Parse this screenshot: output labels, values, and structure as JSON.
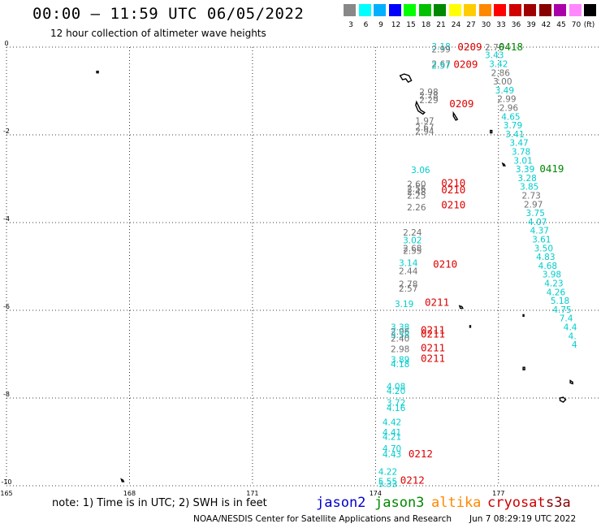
{
  "header": {
    "title": "00:00 – 11:59 UTC 06/05/2022",
    "subtitle": "12 hour collection of altimeter wave heights"
  },
  "legend": {
    "unit": "(ft)",
    "bins": [
      {
        "label": "3",
        "color": "#888888"
      },
      {
        "label": "6",
        "color": "#00ffff"
      },
      {
        "label": "9",
        "color": "#00b0ff"
      },
      {
        "label": "12",
        "color": "#0000ff"
      },
      {
        "label": "15",
        "color": "#00ff00"
      },
      {
        "label": "18",
        "color": "#00c000"
      },
      {
        "label": "21",
        "color": "#008800"
      },
      {
        "label": "24",
        "color": "#ffff00"
      },
      {
        "label": "27",
        "color": "#ffcc00"
      },
      {
        "label": "30",
        "color": "#ff8800"
      },
      {
        "label": "33",
        "color": "#ff0000"
      },
      {
        "label": "36",
        "color": "#d00000"
      },
      {
        "label": "39",
        "color": "#a00000"
      },
      {
        "label": "42",
        "color": "#880000"
      },
      {
        "label": "45",
        "color": "#aa00aa"
      },
      {
        "label": "70",
        "color": "#ff88ff"
      },
      {
        "label": "",
        "color": "#000000"
      }
    ]
  },
  "axes": {
    "lon_ticks": [
      "165",
      "168",
      "171",
      "174",
      "177"
    ],
    "lat_ticks": [
      "0",
      "-2",
      "-4",
      "-6",
      "-8",
      "-10"
    ],
    "lon_range": [
      165,
      179.5
    ],
    "lat_range": [
      0,
      -10
    ]
  },
  "colors": {
    "cyan": "#00cccc",
    "gray": "#707070",
    "time_red": "#dd0000",
    "time_green": "#008800"
  },
  "readings": [
    {
      "lon": 175.6,
      "lat": 0.02,
      "text": "3.18",
      "c": "cyan"
    },
    {
      "lon": 175.6,
      "lat": -0.05,
      "text": "2.99",
      "c": "gray"
    },
    {
      "lon": 176.9,
      "lat": 0.0,
      "text": "2.76",
      "c": "gray"
    },
    {
      "lon": 175.6,
      "lat": -0.38,
      "text": "2.67",
      "c": "gray"
    },
    {
      "lon": 175.6,
      "lat": -0.42,
      "text": "2.57",
      "c": "cyan"
    },
    {
      "lon": 176.9,
      "lat": -0.18,
      "text": "3.43",
      "c": "cyan"
    },
    {
      "lon": 177.0,
      "lat": -0.38,
      "text": "3.42",
      "c": "cyan"
    },
    {
      "lon": 177.05,
      "lat": -0.58,
      "text": "2.86",
      "c": "gray"
    },
    {
      "lon": 177.1,
      "lat": -0.78,
      "text": "3.00",
      "c": "gray"
    },
    {
      "lon": 177.15,
      "lat": -0.98,
      "text": "3.49",
      "c": "cyan"
    },
    {
      "lon": 177.2,
      "lat": -1.18,
      "text": "2.99",
      "c": "gray"
    },
    {
      "lon": 177.25,
      "lat": -1.38,
      "text": "2.96",
      "c": "gray"
    },
    {
      "lon": 177.3,
      "lat": -1.58,
      "text": "4.65",
      "c": "cyan"
    },
    {
      "lon": 177.35,
      "lat": -1.78,
      "text": "3.79",
      "c": "cyan"
    },
    {
      "lon": 177.4,
      "lat": -1.98,
      "text": "3.41",
      "c": "cyan"
    },
    {
      "lon": 177.5,
      "lat": -2.18,
      "text": "3.47",
      "c": "cyan"
    },
    {
      "lon": 177.55,
      "lat": -2.38,
      "text": "3.78",
      "c": "cyan"
    },
    {
      "lon": 177.6,
      "lat": -2.58,
      "text": "3.01",
      "c": "cyan"
    },
    {
      "lon": 177.65,
      "lat": -2.78,
      "text": "3.39",
      "c": "cyan"
    },
    {
      "lon": 177.7,
      "lat": -2.98,
      "text": "3.28",
      "c": "cyan"
    },
    {
      "lon": 177.75,
      "lat": -3.18,
      "text": "3.85",
      "c": "cyan"
    },
    {
      "lon": 177.8,
      "lat": -3.38,
      "text": "2.73",
      "c": "gray"
    },
    {
      "lon": 177.85,
      "lat": -3.58,
      "text": "2.97",
      "c": "gray"
    },
    {
      "lon": 177.9,
      "lat": -3.78,
      "text": "3.75",
      "c": "cyan"
    },
    {
      "lon": 177.95,
      "lat": -3.98,
      "text": "4.07",
      "c": "cyan"
    },
    {
      "lon": 178.0,
      "lat": -4.18,
      "text": "4.37",
      "c": "cyan"
    },
    {
      "lon": 178.05,
      "lat": -4.38,
      "text": "3.61",
      "c": "cyan"
    },
    {
      "lon": 178.1,
      "lat": -4.58,
      "text": "3.50",
      "c": "cyan"
    },
    {
      "lon": 178.15,
      "lat": -4.78,
      "text": "4.83",
      "c": "cyan"
    },
    {
      "lon": 178.2,
      "lat": -4.98,
      "text": "4.68",
      "c": "cyan"
    },
    {
      "lon": 178.3,
      "lat": -5.18,
      "text": "3.98",
      "c": "cyan"
    },
    {
      "lon": 178.35,
      "lat": -5.38,
      "text": "4.23",
      "c": "cyan"
    },
    {
      "lon": 178.4,
      "lat": -5.58,
      "text": "4.26",
      "c": "cyan"
    },
    {
      "lon": 178.5,
      "lat": -5.78,
      "text": "5.18",
      "c": "cyan"
    },
    {
      "lon": 178.55,
      "lat": -5.98,
      "text": "4.75",
      "c": "cyan"
    },
    {
      "lon": 178.65,
      "lat": -6.18,
      "text": "7.4",
      "c": "cyan"
    },
    {
      "lon": 178.75,
      "lat": -6.38,
      "text": "4.4",
      "c": "cyan"
    },
    {
      "lon": 178.8,
      "lat": -6.58,
      "text": "4.",
      "c": "cyan"
    },
    {
      "lon": 178.85,
      "lat": -6.78,
      "text": "4",
      "c": "cyan"
    },
    {
      "lon": 175.3,
      "lat": -1.02,
      "text": "2.98",
      "c": "gray"
    },
    {
      "lon": 175.3,
      "lat": -1.1,
      "text": "2.78",
      "c": "gray"
    },
    {
      "lon": 175.3,
      "lat": -1.2,
      "text": "2.29",
      "c": "gray"
    },
    {
      "lon": 175.2,
      "lat": -1.68,
      "text": "1.97",
      "c": "gray"
    },
    {
      "lon": 175.2,
      "lat": -1.82,
      "text": "2.67",
      "c": "gray"
    },
    {
      "lon": 175.2,
      "lat": -1.92,
      "text": "2.94",
      "c": "gray"
    },
    {
      "lon": 175.1,
      "lat": -2.8,
      "text": "3.06",
      "c": "cyan"
    },
    {
      "lon": 175.0,
      "lat": -3.12,
      "text": "2.60",
      "c": "gray"
    },
    {
      "lon": 175.0,
      "lat": -3.22,
      "text": "2.56",
      "c": "gray"
    },
    {
      "lon": 175.0,
      "lat": -3.3,
      "text": "2.48",
      "c": "gray"
    },
    {
      "lon": 175.0,
      "lat": -3.38,
      "text": "2.25",
      "c": "gray"
    },
    {
      "lon": 175.0,
      "lat": -3.65,
      "text": "2.26",
      "c": "gray"
    },
    {
      "lon": 174.9,
      "lat": -4.22,
      "text": "2.24",
      "c": "gray"
    },
    {
      "lon": 174.9,
      "lat": -4.4,
      "text": "3.02",
      "c": "cyan"
    },
    {
      "lon": 174.9,
      "lat": -4.58,
      "text": "2.68",
      "c": "gray"
    },
    {
      "lon": 174.9,
      "lat": -4.64,
      "text": "2.55",
      "c": "gray"
    },
    {
      "lon": 174.8,
      "lat": -4.92,
      "text": "3.14",
      "c": "cyan"
    },
    {
      "lon": 174.8,
      "lat": -5.1,
      "text": "2.44",
      "c": "gray"
    },
    {
      "lon": 174.8,
      "lat": -5.4,
      "text": "2.78",
      "c": "gray"
    },
    {
      "lon": 174.8,
      "lat": -5.5,
      "text": "2.57",
      "c": "gray"
    },
    {
      "lon": 174.7,
      "lat": -5.85,
      "text": "3.19",
      "c": "cyan"
    },
    {
      "lon": 174.6,
      "lat": -6.38,
      "text": "3.38",
      "c": "cyan"
    },
    {
      "lon": 174.6,
      "lat": -6.48,
      "text": "2.96",
      "c": "gray"
    },
    {
      "lon": 174.6,
      "lat": -6.56,
      "text": "3.58",
      "c": "cyan"
    },
    {
      "lon": 174.6,
      "lat": -6.64,
      "text": "2.40",
      "c": "gray"
    },
    {
      "lon": 174.6,
      "lat": -6.88,
      "text": "2.98",
      "c": "gray"
    },
    {
      "lon": 174.6,
      "lat": -7.12,
      "text": "3.89",
      "c": "cyan"
    },
    {
      "lon": 174.6,
      "lat": -7.22,
      "text": "4.18",
      "c": "cyan"
    },
    {
      "lon": 174.5,
      "lat": -7.73,
      "text": "4.08",
      "c": "cyan"
    },
    {
      "lon": 174.5,
      "lat": -7.83,
      "text": "4.20",
      "c": "cyan"
    },
    {
      "lon": 174.5,
      "lat": -8.1,
      "text": "3.72",
      "c": "cyan"
    },
    {
      "lon": 174.5,
      "lat": -8.22,
      "text": "4.16",
      "c": "cyan"
    },
    {
      "lon": 174.4,
      "lat": -8.55,
      "text": "4.42",
      "c": "cyan"
    },
    {
      "lon": 174.4,
      "lat": -8.78,
      "text": "4.41",
      "c": "cyan"
    },
    {
      "lon": 174.4,
      "lat": -8.88,
      "text": "4.21",
      "c": "cyan"
    },
    {
      "lon": 174.4,
      "lat": -9.15,
      "text": "4.70",
      "c": "cyan"
    },
    {
      "lon": 174.4,
      "lat": -9.28,
      "text": "4.43",
      "c": "cyan"
    },
    {
      "lon": 174.3,
      "lat": -9.68,
      "text": "4.22",
      "c": "cyan"
    },
    {
      "lon": 174.3,
      "lat": -9.9,
      "text": "5.55",
      "c": "cyan"
    },
    {
      "lon": 174.3,
      "lat": -9.95,
      "text": "5.33",
      "c": "cyan"
    }
  ],
  "time_labels": [
    {
      "lon": 176.3,
      "lat": 0.0,
      "text": "0209",
      "c": "time_red"
    },
    {
      "lon": 177.3,
      "lat": 0.0,
      "text": "0418",
      "c": "time_green"
    },
    {
      "lon": 176.2,
      "lat": -0.4,
      "text": "0209",
      "c": "time_red"
    },
    {
      "lon": 176.1,
      "lat": -1.3,
      "text": "0209",
      "c": "time_red"
    },
    {
      "lon": 178.3,
      "lat": -2.78,
      "text": "0419",
      "c": "time_green"
    },
    {
      "lon": 175.9,
      "lat": -3.1,
      "text": "0210",
      "c": "time_red"
    },
    {
      "lon": 175.9,
      "lat": -3.26,
      "text": "0210",
      "c": "time_red"
    },
    {
      "lon": 175.9,
      "lat": -3.6,
      "text": "0210",
      "c": "time_red"
    },
    {
      "lon": 175.7,
      "lat": -4.95,
      "text": "0210",
      "c": "time_red"
    },
    {
      "lon": 175.5,
      "lat": -5.82,
      "text": "0211",
      "c": "time_red"
    },
    {
      "lon": 175.4,
      "lat": -6.45,
      "text": "0211",
      "c": "time_red"
    },
    {
      "lon": 175.4,
      "lat": -6.55,
      "text": "0211",
      "c": "time_red"
    },
    {
      "lon": 175.4,
      "lat": -6.86,
      "text": "0211",
      "c": "time_red"
    },
    {
      "lon": 175.4,
      "lat": -7.1,
      "text": "0211",
      "c": "time_red"
    },
    {
      "lon": 175.1,
      "lat": -9.28,
      "text": "0212",
      "c": "time_red"
    },
    {
      "lon": 174.9,
      "lat": -9.88,
      "text": "0212",
      "c": "time_red"
    }
  ],
  "footer": {
    "note": "note: 1) Time is in UTC; 2) SWH is in feet",
    "missions": [
      {
        "name": "jason2",
        "color": "#0000cc"
      },
      {
        "name": "jason3",
        "color": "#008800"
      },
      {
        "name": "altika",
        "color": "#ff8800"
      },
      {
        "name": "cryosat",
        "color": "#cc0000"
      },
      {
        "name": "s3a",
        "color": "#880000"
      }
    ],
    "credit": "NOAA/NESDIS Center for Satellite Applications and Research",
    "timestamp": "Jun  7 08:29:19 UTC 2022"
  }
}
